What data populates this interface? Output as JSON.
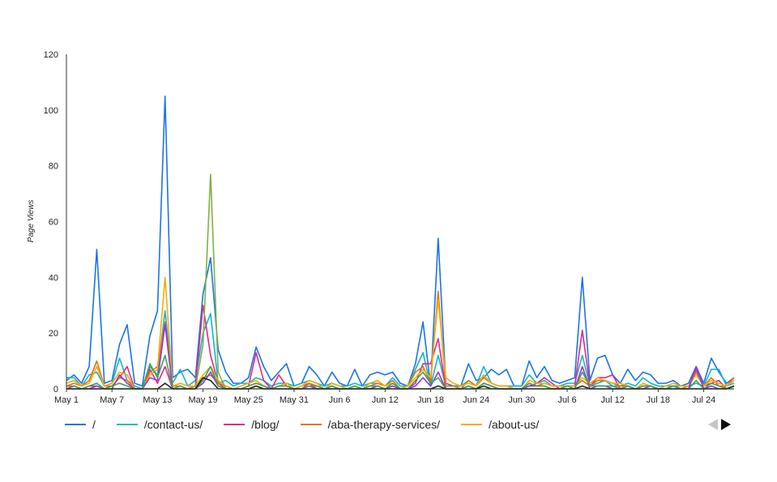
{
  "chart_data": {
    "type": "line",
    "title": "",
    "xlabel": "",
    "ylabel": "Page Views",
    "ylim": [
      0,
      120
    ],
    "yticks": [
      0,
      20,
      40,
      60,
      80,
      100,
      120
    ],
    "x_tick_labels": [
      "May 1",
      "May 7",
      "May 13",
      "May 19",
      "May 25",
      "May 31",
      "Jun 6",
      "Jun 12",
      "Jun 18",
      "Jun 24",
      "Jun 30",
      "Jul 6",
      "Jul 12",
      "Jul 18",
      "Jul 24"
    ],
    "x_tick_every": 6,
    "legend_position": "bottom",
    "series": [
      {
        "name": "/",
        "color": "#1a73e8",
        "values": [
          3,
          5,
          2,
          8,
          50,
          2,
          3,
          16,
          23,
          2,
          1,
          19,
          28,
          105,
          4,
          6,
          7,
          4,
          34,
          47,
          14,
          6,
          2,
          2,
          4,
          15,
          8,
          3,
          6,
          9,
          1,
          2,
          8,
          5,
          1,
          6,
          2,
          1,
          7,
          1,
          5,
          6,
          5,
          6,
          2,
          1,
          9,
          24,
          1,
          54,
          2,
          1,
          1,
          9,
          3,
          4,
          7,
          5,
          7,
          1,
          1,
          10,
          4,
          8,
          3,
          2,
          3,
          4,
          40,
          3,
          11,
          12,
          5,
          2,
          7,
          3,
          6,
          5,
          2,
          2,
          3,
          1,
          2,
          8,
          2,
          11,
          6,
          2,
          4
        ]
      },
      {
        "name": "/contact-us/",
        "color": "#12b5cb",
        "values": [
          4,
          4,
          1,
          5,
          6,
          1,
          2,
          11,
          3,
          1,
          0,
          8,
          5,
          28,
          2,
          7,
          1,
          3,
          20,
          27,
          2,
          3,
          1,
          2,
          2,
          4,
          3,
          1,
          2,
          2,
          1,
          2,
          3,
          2,
          1,
          2,
          1,
          1,
          2,
          1,
          2,
          2,
          1,
          4,
          1,
          1,
          7,
          13,
          1,
          12,
          1,
          1,
          1,
          3,
          1,
          8,
          2,
          1,
          1,
          1,
          1,
          5,
          2,
          3,
          1,
          1,
          2,
          2,
          12,
          1,
          2,
          3,
          1,
          1,
          2,
          1,
          4,
          2,
          1,
          1,
          1,
          1,
          1,
          2,
          1,
          7,
          7,
          1,
          2
        ]
      },
      {
        "name": "/blog/",
        "color": "#e52592",
        "values": [
          0,
          1,
          0,
          1,
          1,
          0,
          1,
          4,
          8,
          0,
          0,
          7,
          2,
          8,
          0,
          0,
          0,
          1,
          30,
          12,
          2,
          0,
          0,
          0,
          1,
          13,
          3,
          0,
          5,
          1,
          0,
          0,
          2,
          0,
          0,
          1,
          0,
          0,
          1,
          0,
          0,
          1,
          0,
          1,
          0,
          0,
          2,
          9,
          9,
          18,
          0,
          0,
          0,
          1,
          0,
          2,
          1,
          0,
          0,
          0,
          0,
          1,
          2,
          4,
          2,
          0,
          1,
          1,
          21,
          1,
          4,
          4,
          5,
          0,
          1,
          0,
          1,
          1,
          0,
          0,
          1,
          0,
          0,
          7,
          1,
          2,
          3,
          0,
          1
        ]
      },
      {
        "name": "/aba-therapy-services/",
        "color": "#e8710a",
        "values": [
          1,
          2,
          1,
          3,
          10,
          1,
          1,
          4,
          3,
          0,
          0,
          6,
          8,
          24,
          1,
          1,
          0,
          1,
          4,
          5,
          2,
          1,
          0,
          0,
          1,
          2,
          1,
          0,
          1,
          1,
          0,
          1,
          2,
          1,
          0,
          1,
          0,
          0,
          1,
          0,
          1,
          2,
          1,
          3,
          0,
          1,
          6,
          8,
          2,
          35,
          1,
          1,
          0,
          3,
          1,
          4,
          2,
          1,
          1,
          0,
          0,
          2,
          1,
          2,
          1,
          1,
          1,
          1,
          3,
          1,
          3,
          3,
          2,
          1,
          1,
          0,
          1,
          1,
          0,
          0,
          1,
          0,
          1,
          6,
          1,
          4,
          1,
          1,
          4
        ]
      },
      {
        "name": "/about-us/",
        "color": "#f9ab00",
        "values": [
          2,
          3,
          1,
          2,
          8,
          1,
          2,
          6,
          5,
          0,
          0,
          5,
          7,
          40,
          1,
          2,
          1,
          1,
          5,
          8,
          3,
          1,
          0,
          1,
          2,
          3,
          1,
          0,
          1,
          2,
          0,
          1,
          3,
          2,
          0,
          2,
          1,
          0,
          1,
          0,
          2,
          3,
          1,
          2,
          0,
          1,
          4,
          7,
          4,
          32,
          4,
          2,
          1,
          2,
          1,
          5,
          2,
          1,
          1,
          0,
          0,
          3,
          2,
          2,
          1,
          1,
          1,
          1,
          4,
          2,
          4,
          3,
          2,
          2,
          1,
          0,
          2,
          1,
          0,
          1,
          2,
          1,
          1,
          5,
          1,
          3,
          2,
          1,
          3
        ]
      },
      {
        "name": "",
        "color": "#7cb342",
        "values": [
          0,
          0,
          0,
          0,
          0,
          0,
          0,
          0,
          0,
          0,
          0,
          0,
          0,
          0,
          0,
          0,
          0,
          0,
          16,
          77,
          6,
          0,
          0,
          0,
          0,
          0,
          0,
          0,
          0,
          0,
          0,
          0,
          0,
          0,
          0,
          0,
          0,
          0,
          0,
          0,
          0,
          0,
          0,
          0,
          0,
          0,
          0,
          0,
          0,
          0,
          0,
          0,
          0,
          0,
          0,
          0,
          0,
          0,
          0,
          0,
          0,
          0,
          0,
          0,
          0,
          0,
          0,
          0,
          0,
          0,
          0,
          0,
          0,
          0,
          0,
          0,
          0,
          0,
          0,
          0,
          0,
          0,
          0,
          0,
          0,
          0,
          0,
          0,
          0
        ]
      },
      {
        "name": "",
        "color": "#9334e6",
        "values": [
          0,
          0,
          0,
          0,
          1,
          0,
          0,
          5,
          2,
          0,
          0,
          4,
          3,
          23,
          0,
          0,
          0,
          0,
          2,
          6,
          1,
          0,
          0,
          0,
          0,
          1,
          0,
          0,
          0,
          0,
          0,
          0,
          1,
          0,
          0,
          0,
          0,
          0,
          0,
          0,
          0,
          1,
          0,
          1,
          0,
          0,
          1,
          4,
          1,
          6,
          0,
          0,
          0,
          1,
          0,
          2,
          1,
          0,
          0,
          0,
          0,
          1,
          1,
          1,
          0,
          0,
          0,
          0,
          8,
          0,
          1,
          1,
          0,
          0,
          1,
          0,
          0,
          1,
          0,
          0,
          0,
          0,
          0,
          8,
          0,
          1,
          0,
          0,
          1
        ]
      },
      {
        "name": "",
        "color": "#34a853",
        "values": [
          1,
          1,
          0,
          1,
          2,
          0,
          1,
          2,
          1,
          0,
          0,
          9,
          4,
          12,
          0,
          1,
          0,
          0,
          3,
          8,
          1,
          0,
          0,
          0,
          1,
          2,
          1,
          0,
          1,
          1,
          0,
          0,
          1,
          1,
          0,
          1,
          0,
          0,
          1,
          0,
          1,
          1,
          0,
          2,
          0,
          0,
          3,
          6,
          2,
          4,
          0,
          0,
          0,
          1,
          0,
          2,
          1,
          0,
          0,
          0,
          0,
          2,
          1,
          1,
          0,
          0,
          1,
          0,
          6,
          1,
          1,
          1,
          1,
          0,
          1,
          0,
          1,
          1,
          0,
          0,
          1,
          0,
          0,
          3,
          0,
          2,
          1,
          0,
          1
        ]
      },
      {
        "name": "",
        "color": "#222222",
        "values": [
          0,
          0,
          0,
          0,
          0,
          0,
          0,
          0,
          0,
          0,
          0,
          0,
          0,
          2,
          0,
          0,
          0,
          0,
          4,
          3,
          0,
          0,
          0,
          0,
          0,
          1,
          0,
          0,
          0,
          0,
          0,
          0,
          0,
          0,
          0,
          0,
          0,
          0,
          0,
          0,
          0,
          0,
          0,
          0,
          0,
          0,
          0,
          0,
          0,
          1,
          0,
          0,
          0,
          0,
          0,
          1,
          0,
          0,
          0,
          0,
          0,
          0,
          0,
          0,
          0,
          0,
          0,
          0,
          1,
          0,
          0,
          0,
          0,
          0,
          0,
          0,
          0,
          0,
          0,
          0,
          0,
          0,
          0,
          0,
          0,
          0,
          0,
          0,
          1
        ]
      }
    ]
  },
  "legend": {
    "items": [
      {
        "label": "/",
        "color": "#1a73e8"
      },
      {
        "label": "/contact-us/",
        "color": "#12b5cb"
      },
      {
        "label": "/blog/",
        "color": "#e52592"
      },
      {
        "label": "/aba-therapy-services/",
        "color": "#e8710a"
      },
      {
        "label": "/about-us/",
        "color": "#f9ab00"
      }
    ]
  }
}
